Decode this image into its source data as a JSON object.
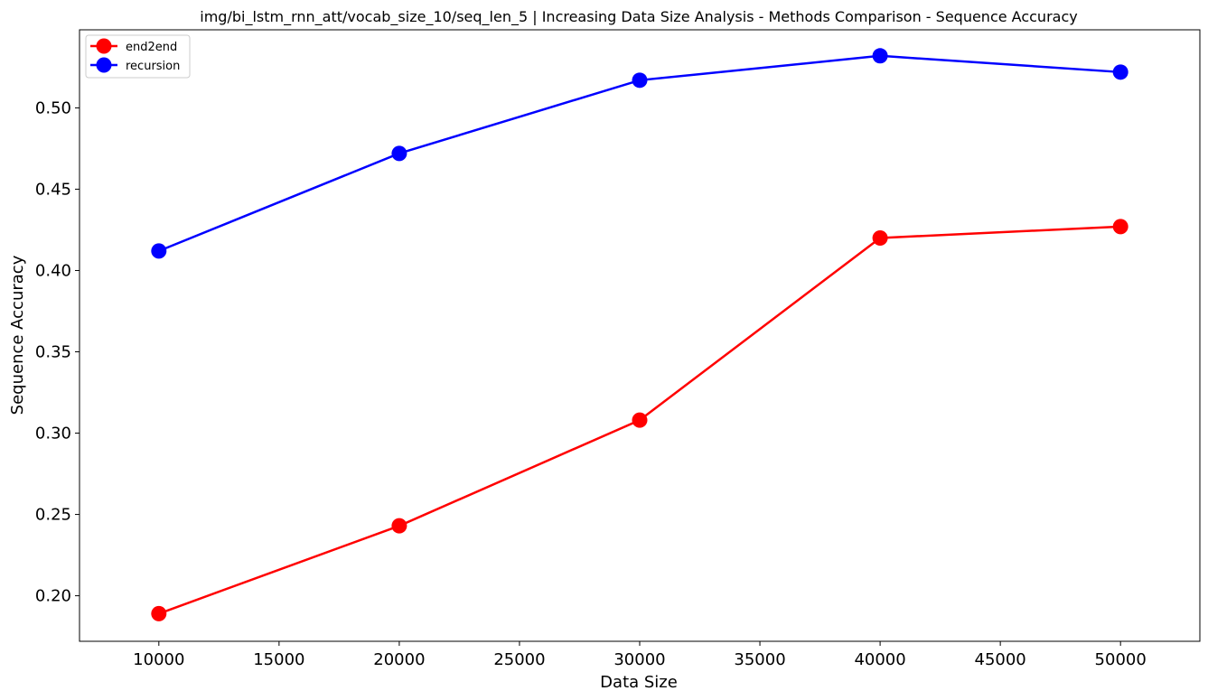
{
  "chart_data": {
    "type": "line",
    "title": "img/bi_lstm_rnn_att/vocab_size_10/seq_len_5 | Increasing Data Size Analysis - Methods Comparison - Sequence Accuracy",
    "xlabel": "Data Size",
    "ylabel": "Sequence Accuracy",
    "x": [
      10000,
      20000,
      30000,
      40000,
      50000
    ],
    "xlim": [
      6700,
      53300
    ],
    "ylim": [
      0.172,
      0.548
    ],
    "xticks": [
      10000,
      15000,
      20000,
      25000,
      30000,
      35000,
      40000,
      45000,
      50000
    ],
    "yticks": [
      0.2,
      0.25,
      0.3,
      0.35,
      0.4,
      0.45,
      0.5
    ],
    "ytick_labels": [
      "0.20",
      "0.25",
      "0.30",
      "0.35",
      "0.40",
      "0.45",
      "0.50"
    ],
    "xtick_labels": [
      "10000",
      "15000",
      "20000",
      "25000",
      "30000",
      "35000",
      "40000",
      "45000",
      "50000"
    ],
    "grid": false,
    "legend_position": "top-left",
    "series": [
      {
        "name": "end2end",
        "color": "#ff0000",
        "values": [
          0.189,
          0.243,
          0.308,
          0.42,
          0.427
        ]
      },
      {
        "name": "recursion",
        "color": "#0000ff",
        "values": [
          0.412,
          0.472,
          0.517,
          0.532,
          0.522
        ]
      }
    ]
  }
}
